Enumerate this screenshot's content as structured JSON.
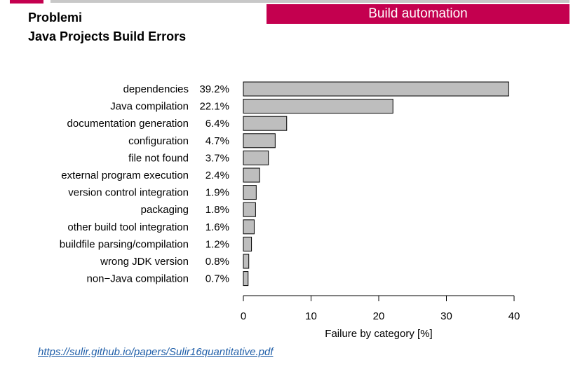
{
  "header": {
    "section_title": "Problemi",
    "slide_title": "Java Projects Build Errors",
    "banner_label": "Build automation"
  },
  "colors": {
    "banner": "#c4004f",
    "bar_fill": "#bebebe",
    "bar_stroke": "#000000",
    "link": "#1f5ea8"
  },
  "source": {
    "link_text": "https://sulir.github.io/papers/Sulir16quantitative.pdf"
  },
  "chart_data": {
    "type": "bar",
    "orientation": "horizontal",
    "categories": [
      "dependencies",
      "Java compilation",
      "documentation generation",
      "configuration",
      "file not found",
      "external program execution",
      "version control integration",
      "packaging",
      "other build tool integration",
      "buildfile parsing/compilation",
      "wrong JDK version",
      "non−Java compilation"
    ],
    "values": [
      39.2,
      22.1,
      6.4,
      4.7,
      3.7,
      2.4,
      1.9,
      1.8,
      1.6,
      1.2,
      0.8,
      0.7
    ],
    "value_labels": [
      "39.2%",
      "22.1%",
      "6.4%",
      "4.7%",
      "3.7%",
      "2.4%",
      "1.9%",
      "1.8%",
      "1.6%",
      "1.2%",
      "0.8%",
      "0.7%"
    ],
    "xlabel": "Failure by category [%]",
    "xlim": [
      0,
      40
    ],
    "xticks": [
      0,
      10,
      20,
      30,
      40
    ],
    "grid": false
  }
}
